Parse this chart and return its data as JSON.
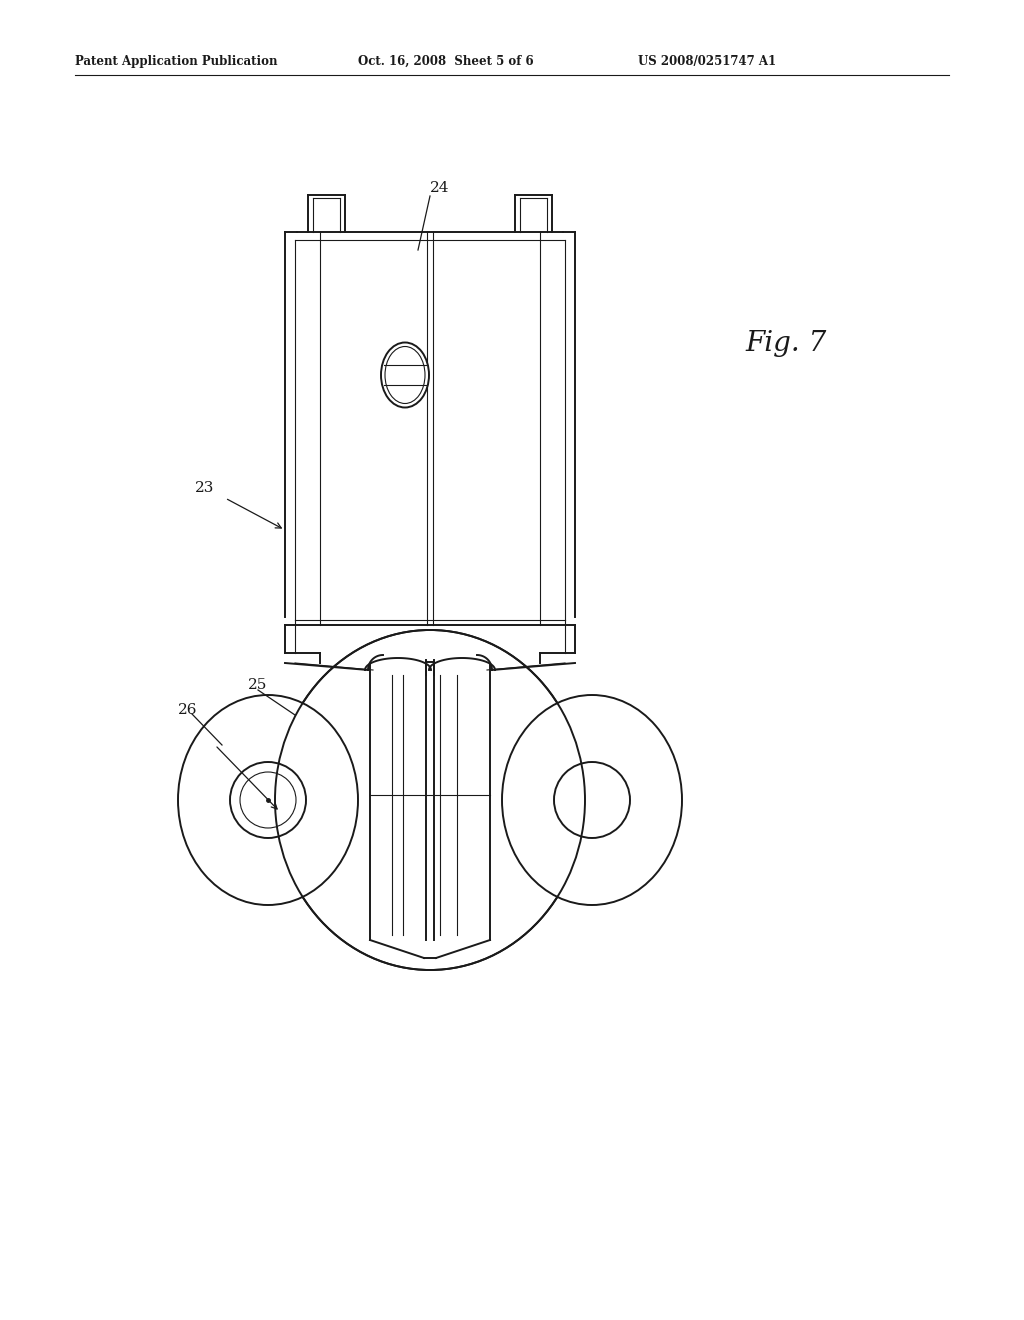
{
  "background_color": "#ffffff",
  "line_color": "#1a1a1a",
  "header_left": "Patent Application Publication",
  "header_center": "Oct. 16, 2008  Sheet 5 of 6",
  "header_right": "US 2008/0251747 A1",
  "fig_label": "Fig. 7",
  "lw_main": 1.4,
  "lw_thin": 0.8,
  "lw_inner": 0.7,
  "label_fontsize": 11
}
